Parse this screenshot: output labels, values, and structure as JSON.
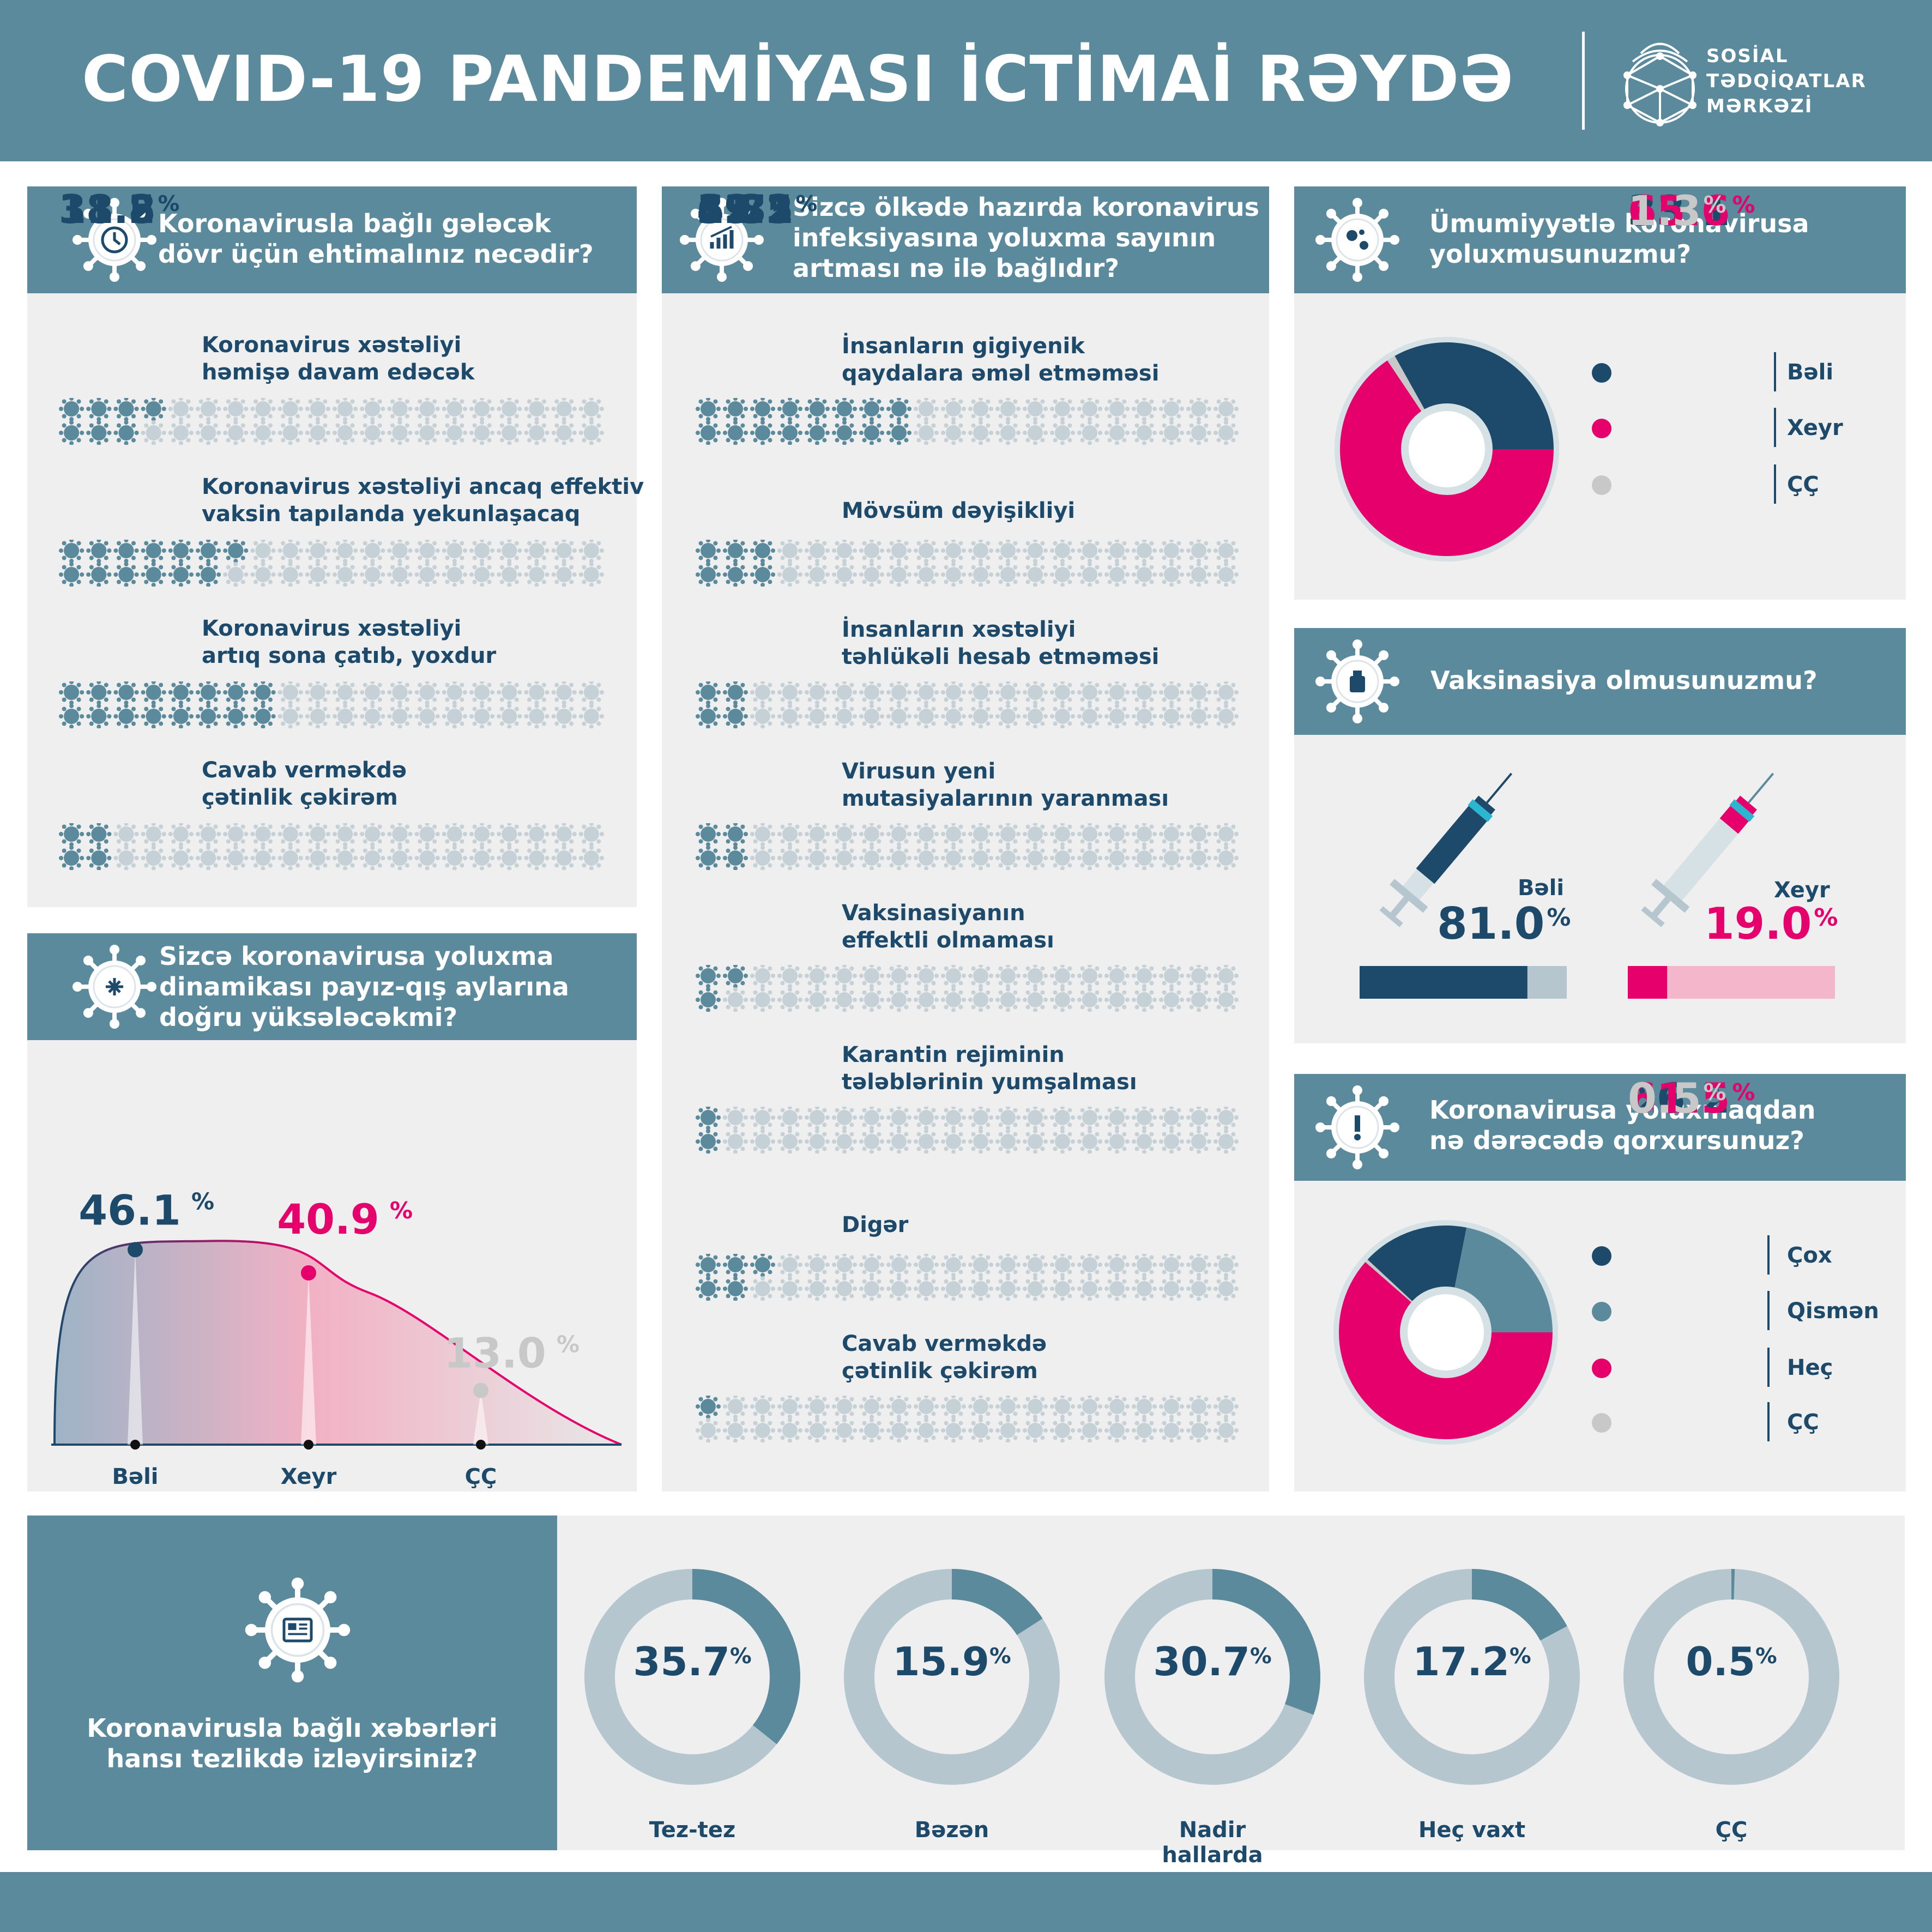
{
  "header": {
    "title": "COVID-19 PANDEMİYASI İCTİMAİ RƏYDƏ",
    "logo_lines": [
      "SOSİAL",
      "TƏDQİQATLAR",
      "MƏRKƏZİ"
    ]
  },
  "colors": {
    "navy": "#1d4a6b",
    "teal": "#5a8a9c",
    "pink": "#e5006b",
    "gray": "#c8c8c8",
    "light_teal": "#b5c6ce"
  },
  "icons": [
    "clock-icon",
    "chart-up-icon",
    "virus-icon",
    "snowflake-icon",
    "vaccine-icon",
    "exclamation-icon",
    "news-icon"
  ],
  "chart_data": [
    {
      "type": "bar",
      "title": "Koronavirusla bağlı gələcək dövr üçün ehtimalınız necədir?",
      "categories": [
        "Koronavirus xəstəliyi həmişə davam edəcək",
        "Koronavirus xəstəliyi ancaq effektiv vaksin tapılanda yekunlaşacaq",
        "Koronavirus xəstəliyi artıq sona çatıb, yoxdur",
        "Cavab verməkdə çətinlik çəkirəm"
      ],
      "label_lines": [
        [
          "Koronavirus xəstəliyi",
          "həmişə davam edəcək"
        ],
        [
          "Koronavirus xəstəliyi ancaq effektiv",
          "vaksin tapılanda yekunlaşacaq"
        ],
        [
          "Koronavirus xəstəliyi",
          "artıq sona çatıb, yoxdur"
        ],
        [
          "Cavab verməkdə",
          "çətinlik çəkirəm"
        ]
      ],
      "values": [
        18.5,
        31.5,
        38.8,
        11.2
      ],
      "display": [
        "18.5",
        "31.5",
        "38.8",
        "11.2"
      ],
      "unit": "%"
    },
    {
      "type": "bar",
      "title": "Sizcə ölkədə hazırda koronavirus infeksiyasına yoluxma sayının artması nə ilə bağlıdır?",
      "title_lines": [
        "Sizcə ölkədə hazırda koronavirus",
        "infeksiyasına yoluxma sayının",
        "artması nə ilə bağlıdır?"
      ],
      "categories": [
        "İnsanların gigiyenik qaydalara əməl etməməsi",
        "Mövsüm dəyişikliyi",
        "İnsanların xəstəliyi təhlükəli hesab etməməsi",
        "Virusun yeni mutasiyalarının yaranması",
        "Vaksinasiyanın effektli olmaması",
        "Karantin rejiminin tələblərinin yumşalması",
        "Digər",
        "Cavab verməkdə çətinlik çəkirəm"
      ],
      "label_lines": [
        [
          "İnsanların gigiyenik",
          "qaydalara əməl etməməsi"
        ],
        [
          "Mövsüm dəyişikliyi"
        ],
        [
          "İnsanların xəstəliyi",
          "təhlükəli hesab etməməsi"
        ],
        [
          "Virusun yeni",
          "mutasiyalarının yaranması"
        ],
        [
          "Vaksinasiyanın",
          "effektli olmaması"
        ],
        [
          "Karantin rejiminin",
          "tələblərinin yumşalması"
        ],
        [
          "Digər"
        ],
        [
          "Cavab verməkdə",
          "çətinlik çəkirəm"
        ]
      ],
      "values": [
        39.3,
        15.1,
        11.2,
        11.2,
        6.3,
        4.7,
        12.5,
        1.8
      ],
      "display": [
        "39.3",
        "15.1",
        "11.2",
        "11.2",
        "6.3",
        "4.7",
        "12.5",
        "1.8"
      ],
      "unit": "%"
    },
    {
      "type": "pie",
      "title": "Ümumiyyətlə koronavirusa yoluxmusunuzmu?",
      "title_lines": [
        "Ümumiyyətlə koronavirusa",
        "yoluxmusunuzmu?"
      ],
      "categories": [
        "Bəli",
        "Xeyr",
        "ÇÇ"
      ],
      "values": [
        33.1,
        65.6,
        1.3
      ],
      "display": [
        "33.1",
        "65.6",
        "1.3"
      ],
      "colors": [
        "#1d4a6b",
        "#e5006b",
        "#c8c8c8"
      ]
    },
    {
      "type": "bar",
      "title": "Vaksinasiya olmusunuzmu?",
      "categories": [
        "Bəli",
        "Xeyr"
      ],
      "values": [
        81.0,
        19.0
      ],
      "display": [
        "81.0",
        "19.0"
      ]
    },
    {
      "type": "pie",
      "title": "Koronavirusa yoluxmaqdan nə dərəcədə qorxursunuz?",
      "title_lines": [
        "Koronavirusa yoluxmaqdan",
        "nə dərəcədə qorxursunuz?"
      ],
      "categories": [
        "Çox",
        "Qismən",
        "Heç",
        "ÇÇ"
      ],
      "values": [
        16.2,
        21.9,
        61.5,
        0.5
      ],
      "display": [
        "16.2",
        "21.9",
        "61.5",
        "0.5"
      ],
      "colors": [
        "#1d4a6b",
        "#5a8a9c",
        "#e5006b",
        "#c8c8c8"
      ]
    },
    {
      "type": "area",
      "title": "Sizcə koronavirusa yoluxma dinamikası payız-qış aylarına doğru yüksələcəkmi?",
      "title_lines": [
        "Sizcə koronavirusa yoluxma",
        "dinamikası payız-qış aylarına",
        "doğru yüksələcəkmi?"
      ],
      "categories": [
        "Bəli",
        "Xeyr",
        "ÇÇ"
      ],
      "values": [
        46.1,
        40.9,
        13.0
      ],
      "display": [
        "46.1",
        "40.9",
        "13.0"
      ]
    },
    {
      "type": "pie",
      "title": "Koronavirusla bağlı xəbərləri hansı tezlikdə izləyirsiniz?",
      "title_lines": [
        "Koronavirusla bağlı xəbərləri",
        "hansı tezlikdə izləyirsiniz?"
      ],
      "categories": [
        "Tez-tez",
        "Bəzən",
        "Nadir hallarda",
        "Heç vaxt",
        "ÇÇ"
      ],
      "values": [
        35.7,
        15.9,
        30.7,
        17.2,
        0.5
      ],
      "display": [
        "35.7",
        "15.9",
        "30.7",
        "17.2",
        "0.5"
      ]
    }
  ]
}
